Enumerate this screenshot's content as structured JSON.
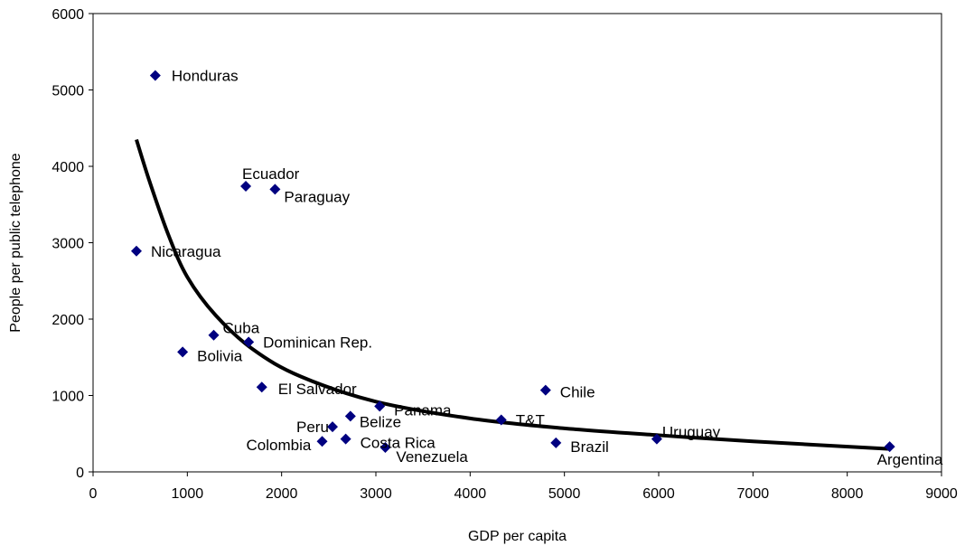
{
  "chart_data": {
    "type": "scatter",
    "title": "",
    "xlabel": "GDP per capita",
    "ylabel": "People per public telephone",
    "xlim": [
      0,
      9000
    ],
    "ylim": [
      0,
      6000
    ],
    "xticks": [
      "0",
      "1000",
      "2000",
      "3000",
      "4000",
      "5000",
      "6000",
      "7000",
      "8000",
      "9000"
    ],
    "yticks": [
      "0",
      "1000",
      "2000",
      "3000",
      "4000",
      "5000",
      "6000"
    ],
    "grid": false,
    "legend": "none",
    "marker": "diamond",
    "marker_color": "#000080",
    "trendline_color": "#000000",
    "trendline": {
      "type": "power",
      "from_x": 460,
      "to_x": 8450,
      "points": [
        [
          460,
          4350
        ],
        [
          600,
          3800
        ],
        [
          800,
          3100
        ],
        [
          1000,
          2550
        ],
        [
          1300,
          2050
        ],
        [
          1700,
          1600
        ],
        [
          2200,
          1250
        ],
        [
          3000,
          920
        ],
        [
          4000,
          700
        ],
        [
          5000,
          570
        ],
        [
          6000,
          480
        ],
        [
          7000,
          400
        ],
        [
          8450,
          300
        ]
      ]
    },
    "points": [
      {
        "label": "Honduras",
        "x": 660,
        "y": 5190
      },
      {
        "label": "Ecuador",
        "x": 1620,
        "y": 3740
      },
      {
        "label": "Paraguay",
        "x": 1930,
        "y": 3700
      },
      {
        "label": "Nicaragua",
        "x": 460,
        "y": 2890
      },
      {
        "label": "Cuba",
        "x": 1280,
        "y": 1790
      },
      {
        "label": "Dominican Rep.",
        "x": 1650,
        "y": 1700
      },
      {
        "label": "Bolivia",
        "x": 950,
        "y": 1570
      },
      {
        "label": "El Salvador",
        "x": 1790,
        "y": 1110
      },
      {
        "label": "Chile",
        "x": 4800,
        "y": 1070
      },
      {
        "label": "Panama",
        "x": 3040,
        "y": 860
      },
      {
        "label": "Belize",
        "x": 2730,
        "y": 730
      },
      {
        "label": "T&T",
        "x": 4330,
        "y": 680
      },
      {
        "label": "Peru",
        "x": 2540,
        "y": 590
      },
      {
        "label": "Costa Rica",
        "x": 2680,
        "y": 430
      },
      {
        "label": "Uruguay",
        "x": 5980,
        "y": 430
      },
      {
        "label": "Colombia",
        "x": 2430,
        "y": 400
      },
      {
        "label": "Brazil",
        "x": 4910,
        "y": 380
      },
      {
        "label": "Venezuela",
        "x": 3100,
        "y": 320
      },
      {
        "label": "Argentina",
        "x": 8450,
        "y": 330
      }
    ]
  }
}
